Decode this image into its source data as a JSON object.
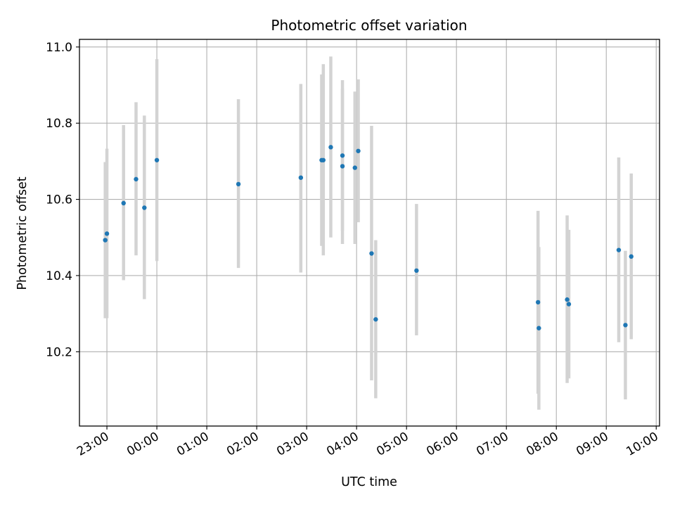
{
  "chart_data": {
    "type": "scatter",
    "title": "Photometric offset variation",
    "xlabel": "UTC time",
    "ylabel": "Photometric offset",
    "x_unit": "UTC time (HH:MM)",
    "xlim": [
      "22:27",
      "10:04"
    ],
    "ylim": [
      10.005,
      11.02
    ],
    "grid": true,
    "xticks": [
      "23:00",
      "00:00",
      "01:00",
      "02:00",
      "03:00",
      "04:00",
      "05:00",
      "06:00",
      "07:00",
      "08:00",
      "09:00",
      "10:00"
    ],
    "yticks": [
      "10.2",
      "10.4",
      "10.6",
      "10.8",
      "11.0"
    ],
    "colors": {
      "point": "#1f77b4",
      "errorbar": "#d3d3d3",
      "grid": "#b0b0b0"
    },
    "series": [
      {
        "points": [
          {
            "x": "22:58",
            "y": 10.493,
            "low": 10.288,
            "high": 10.698
          },
          {
            "x": "23:00",
            "y": 10.51,
            "low": 10.288,
            "high": 10.733
          },
          {
            "x": "23:20",
            "y": 10.59,
            "low": 10.388,
            "high": 10.795
          },
          {
            "x": "23:35",
            "y": 10.653,
            "low": 10.453,
            "high": 10.855
          },
          {
            "x": "23:45",
            "y": 10.578,
            "low": 10.338,
            "high": 10.82
          },
          {
            "x": "24:00",
            "y": 10.703,
            "low": 10.438,
            "high": 10.968
          },
          {
            "x": "25:38",
            "y": 10.64,
            "low": 10.42,
            "high": 10.863
          },
          {
            "x": "26:53",
            "y": 10.657,
            "low": 10.408,
            "high": 10.903
          },
          {
            "x": "27:18",
            "y": 10.703,
            "low": 10.478,
            "high": 10.928
          },
          {
            "x": "27:20",
            "y": 10.703,
            "low": 10.453,
            "high": 10.955
          },
          {
            "x": "27:29",
            "y": 10.737,
            "low": 10.5,
            "high": 10.975
          },
          {
            "x": "27:43",
            "y": 10.715,
            "low": 10.518,
            "high": 10.913
          },
          {
            "x": "27:43",
            "y": 10.687,
            "low": 10.483,
            "high": 10.89
          },
          {
            "x": "27:58",
            "y": 10.683,
            "low": 10.483,
            "high": 10.883
          },
          {
            "x": "28:02",
            "y": 10.727,
            "low": 10.54,
            "high": 10.915
          },
          {
            "x": "28:18",
            "y": 10.458,
            "low": 10.125,
            "high": 10.793
          },
          {
            "x": "28:23",
            "y": 10.285,
            "low": 10.078,
            "high": 10.493
          },
          {
            "x": "29:12",
            "y": 10.413,
            "low": 10.243,
            "high": 10.588
          },
          {
            "x": "31:38",
            "y": 10.33,
            "low": 10.09,
            "high": 10.57
          },
          {
            "x": "31:39",
            "y": 10.262,
            "low": 10.048,
            "high": 10.475
          },
          {
            "x": "32:13",
            "y": 10.337,
            "low": 10.118,
            "high": 10.558
          },
          {
            "x": "32:15",
            "y": 10.325,
            "low": 10.13,
            "high": 10.52
          },
          {
            "x": "33:15",
            "y": 10.467,
            "low": 10.225,
            "high": 10.71
          },
          {
            "x": "33:23",
            "y": 10.27,
            "low": 10.075,
            "high": 10.465
          },
          {
            "x": "33:30",
            "y": 10.45,
            "low": 10.233,
            "high": 10.668
          }
        ]
      }
    ]
  }
}
